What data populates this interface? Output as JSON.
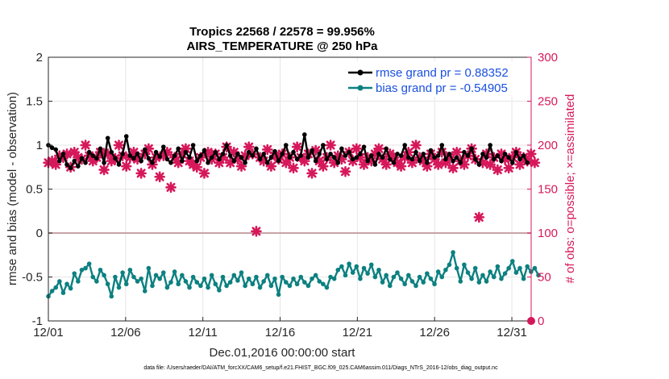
{
  "chart_data": {
    "type": "line",
    "title": "Tropics 22568 / 22578 = 99.956%",
    "subtitle": "AIRS_TEMPERATURE @ 250 hPa",
    "xlabel": "Dec.01,2016 00:00:00 start",
    "ylabel": "rmse and bias (model - observation)",
    "y2label": "# of obs: o=possible; ×=assimilated",
    "footnote": "data file: /Users/raeder/DAI/ATM_forcXX/CAM6_setup/f.e21.FHIST_BGC.f09_025.CAM6assim.011/Diags_NTrS_2016-12/obs_diag_output.nc",
    "x_ticks": [
      "12/01",
      "12/06",
      "12/11",
      "12/16",
      "12/21",
      "12/26",
      "12/31"
    ],
    "x_tick_values": [
      0,
      5,
      10,
      15,
      20,
      25,
      30
    ],
    "xlim": [
      0,
      31.25
    ],
    "ylim": [
      -1,
      2
    ],
    "y_ticks": [
      "-1",
      "-0.5",
      "0",
      "0.5",
      "1",
      "1.5",
      "2"
    ],
    "y_tick_values": [
      -1,
      -0.5,
      0,
      0.5,
      1,
      1.5,
      2
    ],
    "y2lim": [
      0,
      300
    ],
    "y2_ticks": [
      "0",
      "50",
      "100",
      "150",
      "200",
      "250",
      "300"
    ],
    "y2_tick_values": [
      0,
      50,
      100,
      150,
      200,
      250,
      300
    ],
    "legend": [
      "rmse grand pr = 0.88352",
      "bias grand pr = -0.54905"
    ],
    "colors": {
      "rmse": "#000000",
      "bias": "#0d8080",
      "obs": "#d6185b",
      "legend_text": "#1a50e0",
      "zero_line": "#c9a4a8"
    },
    "rmse_seed": [
      1.0,
      0.97,
      0.95,
      0.82,
      0.9,
      0.78,
      0.74,
      0.82,
      0.76,
      0.85,
      0.8,
      0.92,
      0.88,
      0.85,
      0.96,
      0.8,
      1.08,
      0.92,
      0.85,
      0.78,
      0.9,
      1.1,
      0.88,
      0.85,
      0.9,
      0.82,
      0.95,
      0.85,
      0.8,
      0.92,
      0.87,
      0.98,
      0.84,
      0.8,
      0.88,
      0.96,
      0.82,
      0.92,
      0.86,
      1.0,
      0.82,
      0.88,
      0.94,
      0.8,
      0.86,
      0.92,
      0.84,
      0.9,
      1.0,
      0.88,
      0.82,
      0.9,
      0.86,
      0.8,
      0.92,
      0.88,
      0.96,
      0.84,
      0.9,
      0.8,
      0.86,
      0.93,
      0.82,
      0.9,
      1.0,
      0.86,
      0.92,
      0.84,
      0.88,
      1.12,
      0.86,
      0.94,
      0.82,
      0.9,
      1.0,
      0.84,
      0.9,
      0.86,
      0.8,
      0.96,
      0.88,
      0.92,
      0.84,
      0.86,
      0.9,
      0.98,
      0.82,
      0.88,
      0.78,
      0.9,
      0.86,
      0.96,
      0.84,
      0.8,
      0.9,
      0.88,
      1.0,
      0.86,
      0.84,
      0.92,
      0.82,
      0.9,
      0.8,
      0.94,
      0.86,
      0.88,
      1.0,
      0.84,
      0.9,
      0.82,
      0.86,
      0.8,
      0.92,
      0.88,
      0.96,
      0.84,
      0.78,
      0.9,
      0.86,
      1.0,
      0.84,
      0.88,
      0.82,
      0.9,
      0.86,
      0.8,
      0.92,
      0.84,
      0.88,
      0.8
    ],
    "bias_seed": [
      -0.72,
      -0.66,
      -0.62,
      -0.55,
      -0.68,
      -0.58,
      -0.63,
      -0.46,
      -0.55,
      -0.42,
      -0.4,
      -0.35,
      -0.5,
      -0.55,
      -0.42,
      -0.48,
      -0.58,
      -0.72,
      -0.5,
      -0.62,
      -0.45,
      -0.58,
      -0.42,
      -0.5,
      -0.55,
      -0.52,
      -0.66,
      -0.4,
      -0.6,
      -0.48,
      -0.52,
      -0.45,
      -0.62,
      -0.56,
      -0.44,
      -0.58,
      -0.48,
      -0.55,
      -0.62,
      -0.5,
      -0.56,
      -0.6,
      -0.52,
      -0.62,
      -0.48,
      -0.58,
      -0.65,
      -0.5,
      -0.6,
      -0.56,
      -0.48,
      -0.54,
      -0.45,
      -0.6,
      -0.52,
      -0.58,
      -0.5,
      -0.62,
      -0.55,
      -0.48,
      -0.6,
      -0.52,
      -0.7,
      -0.5,
      -0.56,
      -0.6,
      -0.52,
      -0.58,
      -0.5,
      -0.56,
      -0.6,
      -0.52,
      -0.48,
      -0.55,
      -0.58,
      -0.62,
      -0.5,
      -0.52,
      -0.42,
      -0.38,
      -0.48,
      -0.35,
      -0.45,
      -0.38,
      -0.52,
      -0.4,
      -0.46,
      -0.36,
      -0.5,
      -0.42,
      -0.56,
      -0.48,
      -0.6,
      -0.5,
      -0.45,
      -0.52,
      -0.58,
      -0.48,
      -0.55,
      -0.6,
      -0.5,
      -0.56,
      -0.46,
      -0.52,
      -0.58,
      -0.44,
      -0.5,
      -0.42,
      -0.36,
      -0.22,
      -0.4,
      -0.55,
      -0.36,
      -0.45,
      -0.52,
      -0.4,
      -0.56,
      -0.48,
      -0.55,
      -0.44,
      -0.5,
      -0.38,
      -0.52,
      -0.46,
      -0.4,
      -0.32,
      -0.45,
      -0.4,
      -0.52,
      -0.38,
      -0.44,
      -0.4,
      -0.48
    ],
    "obs_seed": [
      180,
      182,
      178,
      188,
      186,
      190,
      175,
      192,
      186,
      184,
      200,
      188,
      182,
      186,
      192,
      172,
      190,
      182,
      185,
      200,
      188,
      176,
      186,
      192,
      184,
      168,
      190,
      196,
      178,
      186,
      164,
      188,
      192,
      152,
      186,
      180,
      190,
      196,
      182,
      178,
      175,
      186,
      168,
      192,
      184,
      190,
      180,
      186,
      198,
      180,
      192,
      184,
      176,
      188,
      198,
      190,
      102,
      186,
      182,
      195,
      176,
      188,
      184,
      190,
      180,
      186,
      174,
      198,
      186,
      182,
      190,
      168,
      194,
      182,
      176,
      186,
      200,
      180,
      188,
      184,
      170,
      192,
      182,
      196,
      186,
      178,
      186,
      182,
      190,
      196,
      184,
      178,
      190,
      186,
      180,
      176,
      186,
      192,
      180,
      200,
      186,
      182,
      176,
      190,
      184,
      178,
      192,
      180,
      186,
      174,
      192,
      182,
      178,
      188,
      196,
      184,
      118,
      180,
      190,
      178,
      186,
      172,
      190,
      184,
      174,
      186,
      192,
      178,
      186,
      182,
      190,
      180
    ]
  }
}
